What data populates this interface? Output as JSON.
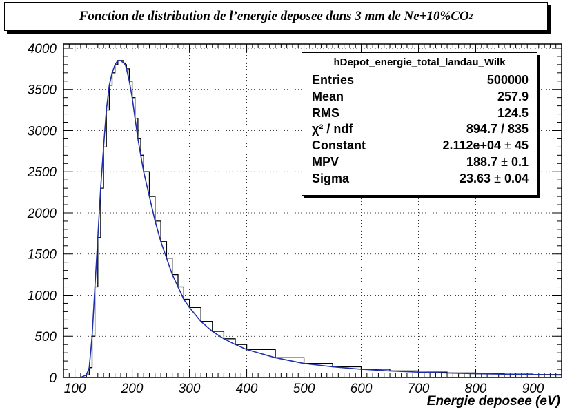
{
  "title": {
    "main": "Fonction de distribution de l’energie deposee dans 3 mm de Ne+10%CO",
    "subscript": "2"
  },
  "stats": {
    "name": "hDepot_energie_total_landau_Wilk",
    "rows": [
      {
        "label": "Entries",
        "value": "500000"
      },
      {
        "label": "Mean",
        "value": "257.9"
      },
      {
        "label": "RMS",
        "value": "124.5"
      },
      {
        "label": "χ² / ndf",
        "value": "894.7 / 835"
      },
      {
        "label": "Constant",
        "value": "2.112e+04",
        "error": "45"
      },
      {
        "label": "MPV",
        "value": "188.7",
        "error": "0.1"
      },
      {
        "label": "Sigma",
        "value": "23.63",
        "error": "0.04"
      }
    ]
  },
  "chart_data": {
    "type": "line",
    "xlabel": "Energie deposee (eV)",
    "ylabel": "",
    "xlim": [
      80,
      950
    ],
    "ylim": [
      0,
      4050
    ],
    "xticks": [
      100,
      200,
      300,
      400,
      500,
      600,
      700,
      800,
      900
    ],
    "yticks": [
      0,
      500,
      1000,
      1500,
      2000,
      2500,
      3000,
      3500,
      4000
    ],
    "grid": true,
    "series": [
      {
        "kind": "histogram",
        "color": "#000000",
        "x": [
          110,
          120,
          125,
          130,
          135,
          140,
          145,
          150,
          155,
          160,
          165,
          170,
          175,
          180,
          185,
          188,
          190,
          195,
          200,
          205,
          210,
          215,
          220,
          230,
          240,
          250,
          260,
          270,
          280,
          290,
          300,
          320,
          340,
          360,
          380,
          400,
          450,
          500,
          550,
          600,
          650,
          700,
          750,
          800,
          850,
          900,
          950
        ],
        "y": [
          0,
          30,
          120,
          500,
          1100,
          1700,
          2300,
          2800,
          3250,
          3550,
          3700,
          3800,
          3850,
          3850,
          3820,
          3800,
          3750,
          3600,
          3400,
          3150,
          2900,
          2700,
          2500,
          2200,
          1900,
          1650,
          1450,
          1250,
          1100,
          950,
          850,
          680,
          560,
          470,
          400,
          340,
          240,
          170,
          130,
          100,
          80,
          65,
          55,
          45,
          40,
          35,
          30
        ]
      },
      {
        "kind": "fit",
        "color": "#1f2fa8",
        "x": [
          110,
          120,
          125,
          130,
          135,
          140,
          145,
          150,
          155,
          160,
          165,
          170,
          175,
          180,
          185,
          188,
          190,
          195,
          200,
          205,
          210,
          215,
          220,
          230,
          240,
          250,
          260,
          270,
          280,
          290,
          300,
          320,
          340,
          360,
          380,
          400,
          450,
          500,
          550,
          600,
          650,
          700,
          750,
          800,
          850,
          900,
          950
        ],
        "y": [
          0,
          30,
          120,
          500,
          1100,
          1700,
          2300,
          2800,
          3250,
          3550,
          3700,
          3800,
          3850,
          3850,
          3820,
          3800,
          3750,
          3600,
          3400,
          3150,
          2900,
          2700,
          2500,
          2200,
          1900,
          1650,
          1450,
          1250,
          1100,
          950,
          850,
          680,
          560,
          470,
          400,
          340,
          240,
          170,
          130,
          100,
          80,
          65,
          55,
          45,
          40,
          35,
          30
        ]
      }
    ]
  }
}
